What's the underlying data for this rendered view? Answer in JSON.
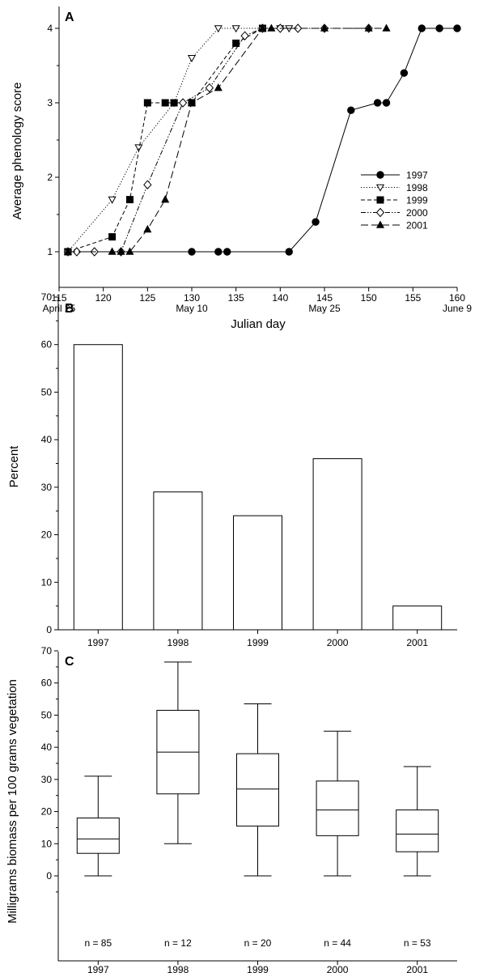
{
  "chart_data": [
    {
      "panel_label": "A",
      "type": "line",
      "xlabel": "Julian day",
      "ylabel": "Average phenology score",
      "xlim": [
        115,
        160
      ],
      "ylim": [
        0.5,
        4.2
      ],
      "x_ticks": [
        115,
        120,
        125,
        130,
        135,
        140,
        145,
        150,
        155,
        160
      ],
      "y_ticks": [
        1,
        2,
        3,
        4
      ],
      "date_labels": [
        {
          "x": 115,
          "label": "April 25"
        },
        {
          "x": 130,
          "label": "May 10"
        },
        {
          "x": 145,
          "label": "May 25"
        },
        {
          "x": 160,
          "label": "June 9"
        }
      ],
      "legend_position": "right",
      "series": [
        {
          "name": "1997",
          "marker": "filled-circle",
          "dash": "solid",
          "points": [
            [
              116,
              1
            ],
            [
              130,
              1
            ],
            [
              133,
              1
            ],
            [
              134,
              1
            ],
            [
              141,
              1
            ],
            [
              144,
              1.4
            ],
            [
              148,
              2.9
            ],
            [
              151,
              3
            ],
            [
              152,
              3
            ],
            [
              154,
              3.4
            ],
            [
              156,
              4
            ],
            [
              158,
              4
            ],
            [
              160,
              4
            ]
          ]
        },
        {
          "name": "1998",
          "marker": "open-triangle-down",
          "dash": "dotted",
          "points": [
            [
              116,
              1
            ],
            [
              121,
              1.7
            ],
            [
              124,
              2.4
            ],
            [
              128,
              3
            ],
            [
              130,
              3.6
            ],
            [
              133,
              4
            ],
            [
              135,
              4
            ],
            [
              140,
              4
            ],
            [
              141,
              4
            ]
          ]
        },
        {
          "name": "1999",
          "marker": "filled-square",
          "dash": "dashed",
          "points": [
            [
              116,
              1
            ],
            [
              121,
              1.2
            ],
            [
              123,
              1.7
            ],
            [
              125,
              3
            ],
            [
              127,
              3
            ],
            [
              128,
              3
            ],
            [
              130,
              3
            ],
            [
              135,
              3.8
            ],
            [
              138,
              4
            ]
          ]
        },
        {
          "name": "2000",
          "marker": "open-diamond",
          "dash": "dash-dot-dot",
          "points": [
            [
              116,
              1
            ],
            [
              117,
              1
            ],
            [
              119,
              1
            ],
            [
              122,
              1
            ],
            [
              125,
              1.9
            ],
            [
              129,
              3
            ],
            [
              132,
              3.2
            ],
            [
              136,
              3.9
            ],
            [
              138,
              4
            ],
            [
              140,
              4
            ],
            [
              142,
              4
            ],
            [
              145,
              4
            ],
            [
              150,
              4
            ]
          ]
        },
        {
          "name": "2001",
          "marker": "filled-triangle-up",
          "dash": "long-dash",
          "points": [
            [
              116,
              1
            ],
            [
              121,
              1
            ],
            [
              122,
              1
            ],
            [
              123,
              1
            ],
            [
              125,
              1.3
            ],
            [
              127,
              1.7
            ],
            [
              130,
              3
            ],
            [
              133,
              3.2
            ],
            [
              138,
              4
            ],
            [
              139,
              4
            ],
            [
              145,
              4
            ],
            [
              150,
              4
            ],
            [
              152,
              4
            ]
          ]
        }
      ]
    },
    {
      "panel_label": "B",
      "type": "bar",
      "ylabel": "Percent",
      "ylim": [
        0,
        70
      ],
      "y_ticks": [
        0,
        10,
        20,
        30,
        40,
        50,
        60,
        70
      ],
      "categories": [
        "1997",
        "1998",
        "1999",
        "2000",
        "2001"
      ],
      "values": [
        60,
        29,
        24,
        36,
        5
      ]
    },
    {
      "panel_label": "C",
      "type": "box",
      "ylabel": "Milligrams biomass per 100 grams vegetation",
      "ylim": [
        -7,
        70
      ],
      "y_ticks": [
        0,
        10,
        20,
        30,
        40,
        50,
        60,
        70
      ],
      "categories": [
        "1997",
        "1998",
        "1999",
        "2000",
        "2001"
      ],
      "boxes": [
        {
          "min": 0,
          "q1": 7,
          "median": 11.5,
          "q3": 18,
          "max": 31,
          "n_label": "n = 85"
        },
        {
          "min": 10,
          "q1": 25.5,
          "median": 38.5,
          "q3": 51.5,
          "max": 66.5,
          "n_label": "n = 12"
        },
        {
          "min": 0,
          "q1": 15.5,
          "median": 27,
          "q3": 38,
          "max": 53.5,
          "n_label": "n = 20"
        },
        {
          "min": 0,
          "q1": 12.5,
          "median": 20.5,
          "q3": 29.5,
          "max": 45,
          "n_label": "n = 44"
        },
        {
          "min": 0,
          "q1": 7.5,
          "median": 13,
          "q3": 20.5,
          "max": 34,
          "n_label": "n = 53"
        }
      ]
    }
  ]
}
